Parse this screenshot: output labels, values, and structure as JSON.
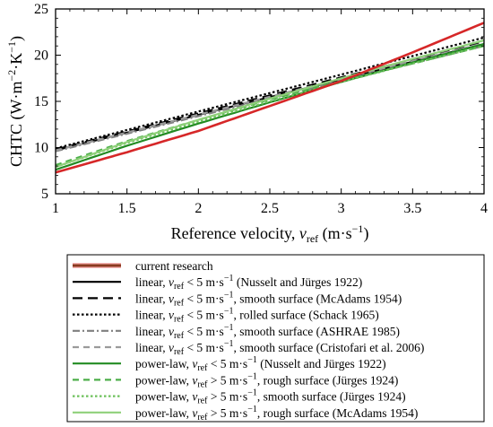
{
  "chart_data": {
    "type": "line",
    "xlabel": "Reference velocity, v_ref (m·s⁻¹)",
    "ylabel": "CHTC (W·m⁻²·K⁻¹)",
    "xlim": [
      1,
      4
    ],
    "ylim": [
      5,
      25
    ],
    "xticks": [
      "1",
      "1.5",
      "2",
      "2.5",
      "3",
      "3.5",
      "4"
    ],
    "yticks": [
      "5",
      "10",
      "15",
      "20",
      "25"
    ],
    "grid": false,
    "legend_position": "below",
    "series": [
      {
        "name": "current research",
        "color": "#d62728",
        "dash": "solid",
        "x": [
          1,
          1.5,
          2,
          2.5,
          3,
          3.5,
          4
        ],
        "y": [
          7.3,
          9.5,
          11.8,
          14.5,
          17.2,
          20.3,
          23.5
        ]
      },
      {
        "name": "linear, v_ref < 5 m·s⁻¹ (Nusselt and Jürges 1922)",
        "color": "#000000",
        "dash": "solid",
        "x": [
          1,
          4
        ],
        "y": [
          9.7,
          21.2
        ]
      },
      {
        "name": "linear, v_ref < 5 m·s⁻¹, smooth surface  (McAdams 1954)",
        "color": "#000000",
        "dash": "longdash",
        "x": [
          1,
          4
        ],
        "y": [
          9.8,
          21.5
        ]
      },
      {
        "name": "linear, v_ref < 5 m·s⁻¹, rolled surface  (Schack 1965)",
        "color": "#000000",
        "dash": "dot",
        "x": [
          1,
          4
        ],
        "y": [
          9.9,
          21.9
        ]
      },
      {
        "name": "linear, v_ref < 5 m·s⁻¹, smooth surface  (ASHRAE 1985)",
        "color": "#7f7f7f",
        "dash": "dashdot",
        "x": [
          1,
          4
        ],
        "y": [
          9.6,
          21.0
        ]
      },
      {
        "name": "linear, v_ref < 5 m·s⁻¹, smooth surface  (Cristofari et al. 2006)",
        "color": "#9a9a9a",
        "dash": "dash",
        "x": [
          1,
          4
        ],
        "y": [
          9.7,
          21.3
        ]
      },
      {
        "name": "power-law, v_ref < 5 m·s⁻¹ (Nusselt and Jürges 1922)",
        "color": "#228b22",
        "dash": "solid",
        "x": [
          1,
          1.5,
          2,
          2.5,
          3,
          3.5,
          4
        ],
        "y": [
          7.6,
          10.2,
          12.6,
          14.9,
          17.1,
          19.2,
          21.2
        ]
      },
      {
        "name": "power-law, v_ref > 5 m·s⁻¹, rough surface (Jürges 1924)",
        "color": "#4daf4a",
        "dash": "dash",
        "x": [
          1,
          1.5,
          2,
          2.5,
          3,
          3.5,
          4
        ],
        "y": [
          8.1,
          10.7,
          13.0,
          15.2,
          17.2,
          19.1,
          21.0
        ]
      },
      {
        "name": "power-law, v_ref > 5 m·s⁻¹, smooth surface (Jürges 1924)",
        "color": "#6cc05a",
        "dash": "dot",
        "x": [
          1,
          1.5,
          2,
          2.5,
          3,
          3.5,
          4
        ],
        "y": [
          7.9,
          10.5,
          12.8,
          15.0,
          17.1,
          19.1,
          21.0
        ]
      },
      {
        "name": "power-law, v_ref > 5 m·s⁻¹, rough surface (McAdams 1954)",
        "color": "#8fd07a",
        "dash": "solid",
        "x": [
          1,
          1.5,
          2,
          2.5,
          3,
          3.5,
          4
        ],
        "y": [
          7.9,
          10.6,
          13.0,
          15.3,
          17.5,
          19.6,
          21.6
        ]
      }
    ],
    "legend_entries": [
      {
        "prefix": "current research",
        "vref": "",
        "sup": "",
        "suffix": ""
      },
      {
        "prefix": "linear, ",
        "vref": "v",
        "cmp": " < 5 m·s",
        "sup": "−1",
        "suffix": " (Nusselt and Jürges 1922)"
      },
      {
        "prefix": "linear, ",
        "vref": "v",
        "cmp": " < 5 m·s",
        "sup": "−1",
        "suffix": ", smooth surface  (McAdams 1954)"
      },
      {
        "prefix": "linear, ",
        "vref": "v",
        "cmp": " < 5 m·s",
        "sup": "−1",
        "suffix": ", rolled surface  (Schack 1965)"
      },
      {
        "prefix": "linear, ",
        "vref": "v",
        "cmp": " < 5 m·s",
        "sup": "−1",
        "suffix": ", smooth surface  (ASHRAE 1985)"
      },
      {
        "prefix": "linear, ",
        "vref": "v",
        "cmp": " < 5 m·s",
        "sup": "−1",
        "suffix": ", smooth surface  (Cristofari et al. 2006)"
      },
      {
        "prefix": "power-law, ",
        "vref": "v",
        "cmp": " < 5 m·s",
        "sup": "−1",
        "suffix": " (Nusselt and Jürges 1922)"
      },
      {
        "prefix": "power-law, ",
        "vref": "v",
        "cmp": " > 5 m·s",
        "sup": "−1",
        "suffix": ", rough surface (Jürges 1924)"
      },
      {
        "prefix": "power-law, ",
        "vref": "v",
        "cmp": " > 5 m·s",
        "sup": "−1",
        "suffix": ", smooth surface (Jürges 1924)"
      },
      {
        "prefix": "power-law, ",
        "vref": "v",
        "cmp": " > 5 m·s",
        "sup": "−1",
        "suffix": ", rough surface (McAdams 1954)"
      }
    ]
  }
}
